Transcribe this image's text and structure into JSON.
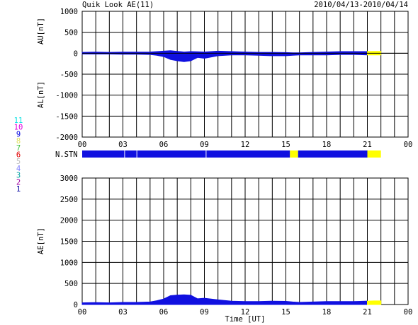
{
  "header": {
    "title": "Quik Look AE(11)",
    "date_range": "2010/04/13-2010/04/14"
  },
  "colors": {
    "station_blue": "#1010e0",
    "partial_yellow": "#ffff00",
    "frame": "#000000"
  },
  "chart_data": [
    {
      "type": "area",
      "ylabel_au": "AU[nT]",
      "ylabel_al": "AL[nT]",
      "ylim": [
        -2000,
        1000
      ],
      "yticks": [
        "1000",
        "500",
        "0",
        "-500",
        "-1000",
        "-1500",
        "-2000"
      ],
      "xticks": [
        "00",
        "03",
        "06",
        "09",
        "12",
        "15",
        "18",
        "21",
        "00"
      ],
      "x_hours": [
        0,
        1,
        2,
        3,
        4,
        5,
        5.5,
        6,
        6.5,
        7,
        7.5,
        8,
        8.5,
        9,
        10,
        11,
        12,
        13,
        14,
        15,
        15.5,
        16,
        17,
        18,
        19,
        20,
        21,
        21.5,
        22
      ],
      "au_values": [
        20,
        25,
        20,
        25,
        25,
        30,
        40,
        50,
        60,
        45,
        30,
        40,
        35,
        30,
        50,
        40,
        30,
        20,
        20,
        15,
        10,
        10,
        20,
        30,
        40,
        40,
        40,
        45,
        45
      ],
      "al_values": [
        -20,
        -20,
        -20,
        -25,
        -25,
        -30,
        -50,
        -80,
        -150,
        -180,
        -200,
        -180,
        -100,
        -120,
        -60,
        -40,
        -40,
        -50,
        -60,
        -60,
        -50,
        -40,
        -40,
        -40,
        -30,
        -30,
        -40,
        -40,
        -40
      ],
      "yellow_from_hour": 21.1,
      "grid": true
    },
    {
      "type": "bar",
      "label": "N.STN",
      "segments": [
        {
          "start": 0,
          "end": 3.1,
          "color": "blue"
        },
        {
          "start": 3.15,
          "end": 4.0,
          "color": "blue"
        },
        {
          "start": 4.05,
          "end": 9.1,
          "color": "blue"
        },
        {
          "start": 9.15,
          "end": 15.3,
          "color": "blue"
        },
        {
          "start": 15.3,
          "end": 15.9,
          "color": "yellow"
        },
        {
          "start": 15.9,
          "end": 21.0,
          "color": "blue"
        },
        {
          "start": 21.0,
          "end": 22.0,
          "color": "yellow"
        }
      ]
    },
    {
      "type": "area",
      "ylabel": "AE[nT]",
      "xlabel": "Time [UT]",
      "ylim": [
        0,
        3000
      ],
      "yticks": [
        "3000",
        "2500",
        "2000",
        "1500",
        "1000",
        "500",
        "0"
      ],
      "xticks": [
        "00",
        "03",
        "06",
        "09",
        "12",
        "15",
        "18",
        "21",
        "00"
      ],
      "x_hours": [
        0,
        1,
        2,
        3,
        4,
        5,
        5.5,
        6,
        6.5,
        7,
        7.5,
        8,
        8.5,
        9,
        10,
        11,
        12,
        13,
        14,
        15,
        15.5,
        16,
        17,
        18,
        19,
        20,
        21,
        21.5,
        22
      ],
      "ae_values": [
        40,
        45,
        40,
        50,
        50,
        60,
        90,
        130,
        210,
        225,
        230,
        220,
        135,
        150,
        110,
        80,
        70,
        70,
        80,
        75,
        60,
        50,
        60,
        70,
        70,
        70,
        80,
        85,
        85
      ],
      "yellow_from_hour": 21.1,
      "grid": true
    }
  ],
  "station_legend": [
    "11",
    "10",
    "9",
    "8",
    "7",
    "6",
    "5",
    "4",
    "3",
    "2",
    "1"
  ],
  "station_legend_colors": [
    "#00e0e0",
    "#e000e0",
    "#0000e0",
    "#e0e060",
    "#40c040",
    "#e00000",
    "#c0c0c0",
    "#8080ff",
    "#00a0a0",
    "#a000a0",
    "#0000a0"
  ]
}
